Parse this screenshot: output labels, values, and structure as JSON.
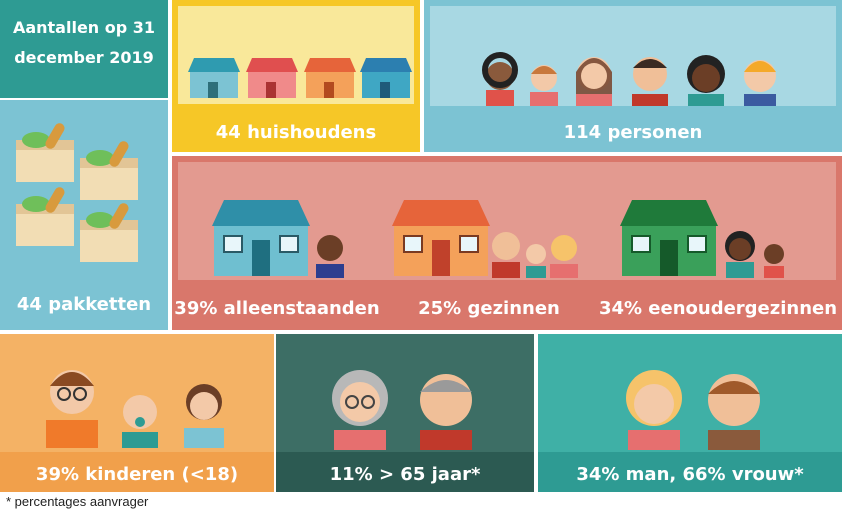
{
  "header": {
    "date_line1": "Aantallen op 31",
    "date_line2": "december 2019"
  },
  "stats": {
    "households": "44 huishoudens",
    "persons": "114 personen",
    "packages": "44 pakketten",
    "singles": "39% alleenstaanden",
    "families": "25% gezinnen",
    "single_parents": "34% eenoudergezinnen",
    "children": "39% kinderen (<18)",
    "elderly": "11% > 65 jaar*",
    "gender": "34% man, 66% vrouw*"
  },
  "footnote": "* percentages aanvrager",
  "colors": {
    "teal": "#2e9b93",
    "yellow": "#f6c727",
    "lightblue": "#7cc3d3",
    "salmon": "#d9776b",
    "orange": "#f1a04b",
    "darkgreen": "#2c5a52"
  }
}
